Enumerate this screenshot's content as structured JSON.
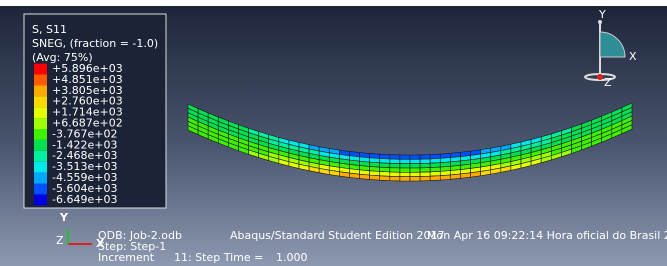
{
  "legend": {
    "title": "S, S11",
    "subtitle": "SNEG, (fraction = -1.0)",
    "average": "(Avg: 75%)",
    "levels": [
      "+5.896e+03",
      "+4.851e+03",
      "+3.805e+03",
      "+2.760e+03",
      "+1.714e+03",
      "+6.687e+02",
      "-3.767e+02",
      "-1.422e+03",
      "-2.468e+03",
      "-3.513e+03",
      "-4.559e+03",
      "-5.604e+03",
      "-6.649e+03"
    ]
  },
  "triad": {
    "y": "Y",
    "z": "Z",
    "x": "X"
  },
  "view_triad": {
    "y": "Y",
    "x": "X",
    "z": "Z"
  },
  "info": {
    "odb": "ODB: Job-2.odb",
    "edition": "Abaqus/Standard Student Edition 2017",
    "date": "Mon Apr 16 09:22:14 Hora oficial do Brasil 201",
    "step": "Step: Step-1",
    "increment": "Increment",
    "increment_value": "11: Step Time =",
    "step_time": "1.000"
  }
}
